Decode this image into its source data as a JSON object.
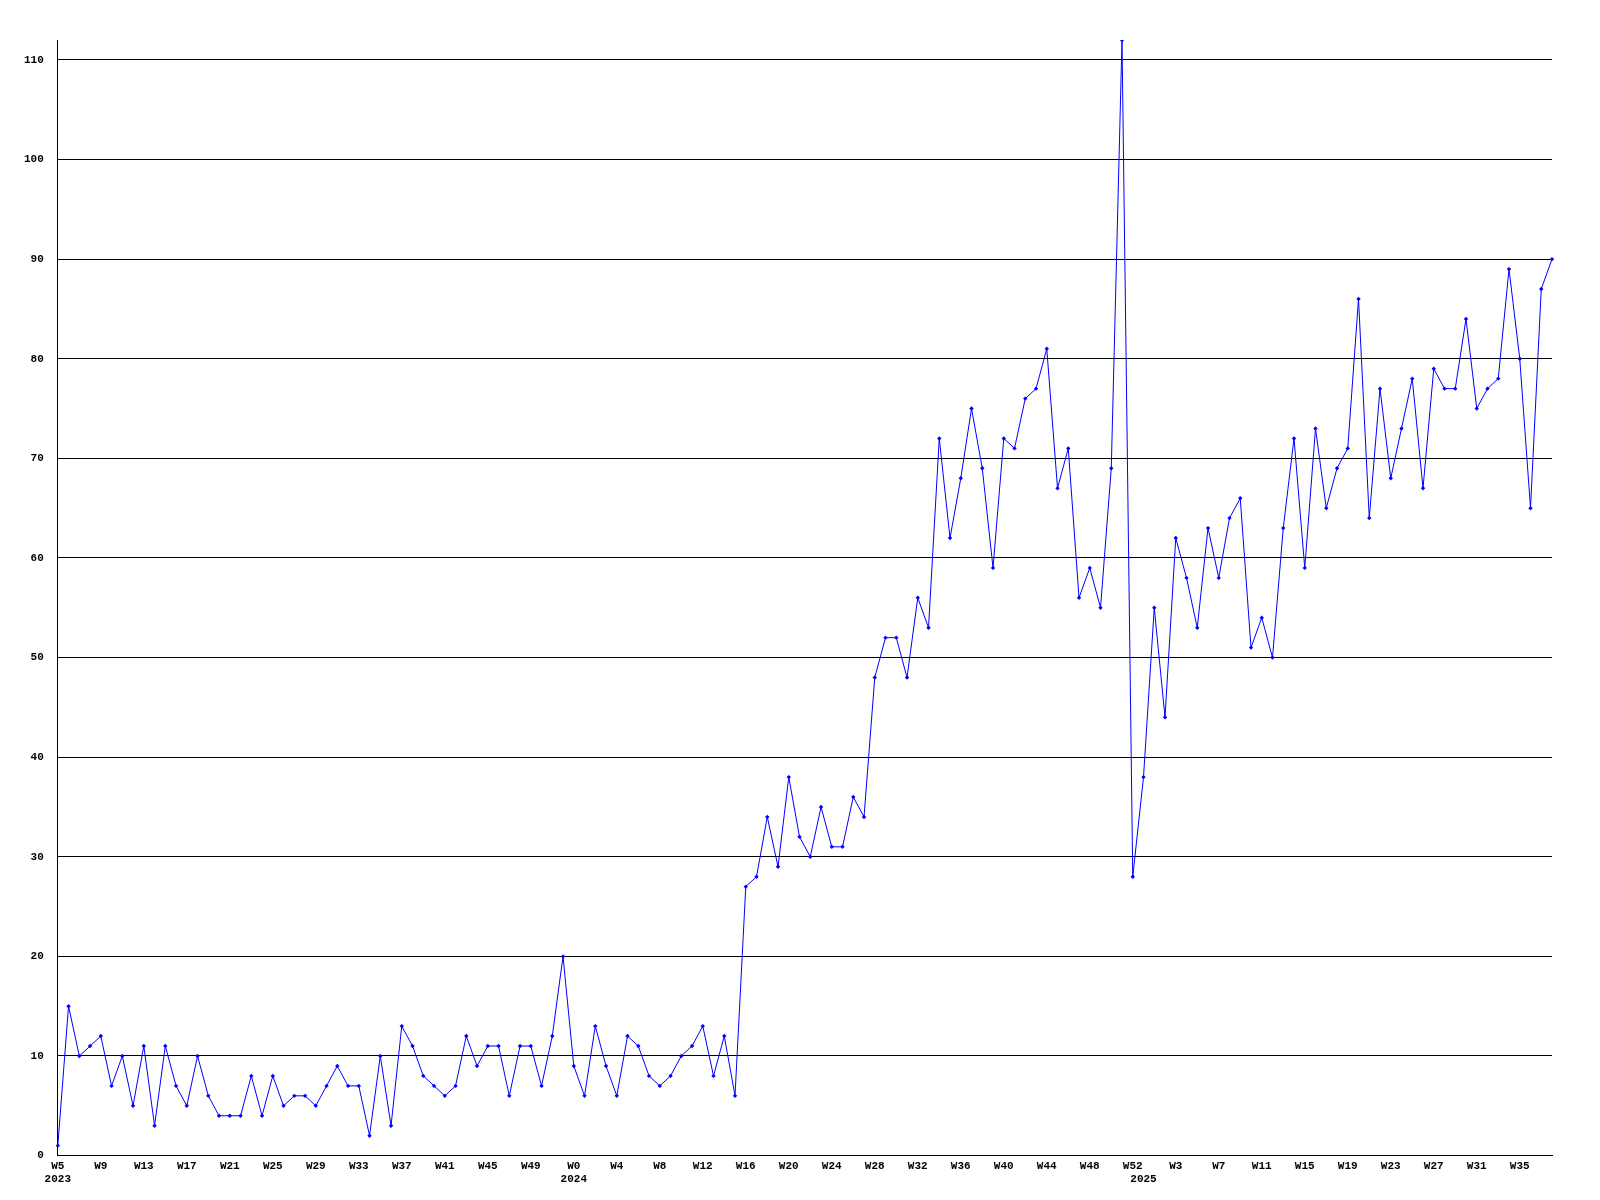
{
  "chart_data": {
    "type": "line",
    "categories": [
      "W5\n2023",
      null,
      null,
      null,
      "W9",
      null,
      null,
      null,
      "W13",
      null,
      null,
      null,
      "W17",
      null,
      null,
      null,
      "W21",
      null,
      null,
      null,
      "W25",
      null,
      null,
      null,
      "W29",
      null,
      null,
      null,
      "W33",
      null,
      null,
      null,
      "W37",
      null,
      null,
      null,
      "W41",
      null,
      null,
      null,
      "W45",
      null,
      null,
      null,
      "W49",
      null,
      null,
      null,
      "W0\n2024",
      null,
      null,
      null,
      "W4",
      null,
      null,
      null,
      "W8",
      null,
      null,
      null,
      "W12",
      null,
      null,
      null,
      "W16",
      null,
      null,
      null,
      "W20",
      null,
      null,
      null,
      "W24",
      null,
      null,
      null,
      "W28",
      null,
      null,
      null,
      "W32",
      null,
      null,
      null,
      "W36",
      null,
      null,
      null,
      "W40",
      null,
      null,
      null,
      "W44",
      null,
      null,
      null,
      "W48",
      null,
      null,
      null,
      "W52",
      "\n2025",
      null,
      null,
      "W3",
      null,
      null,
      null,
      "W7",
      null,
      null,
      null,
      "W11",
      null,
      null,
      null,
      "W15",
      null,
      null,
      null,
      "W19",
      null,
      null,
      null,
      "W23",
      null,
      null,
      null,
      "W27",
      null,
      null,
      null,
      "W31",
      null,
      null,
      null,
      "W35",
      null,
      null,
      null
    ],
    "series": [
      {
        "color": "#0000ff",
        "values": [
          1,
          15,
          10,
          11,
          12,
          7,
          10,
          5,
          11,
          3,
          11,
          7,
          5,
          10,
          6,
          4,
          4,
          4,
          8,
          4,
          8,
          5,
          6,
          6,
          5,
          7,
          9,
          7,
          7,
          2,
          10,
          3,
          13,
          11,
          8,
          7,
          6,
          7,
          12,
          9,
          11,
          11,
          6,
          11,
          11,
          7,
          12,
          20,
          9,
          6,
          13,
          9,
          6,
          12,
          11,
          8,
          7,
          8,
          10,
          11,
          13,
          8,
          12,
          6,
          27,
          28,
          34,
          29,
          38,
          32,
          30,
          35,
          31,
          31,
          36,
          34,
          48,
          52,
          52,
          48,
          56,
          53,
          72,
          62,
          68,
          75,
          69,
          59,
          72,
          71,
          76,
          77,
          81,
          67,
          71,
          56,
          59,
          55,
          69,
          112,
          28,
          38,
          55,
          44,
          62,
          58,
          53,
          63,
          58,
          64,
          66,
          51,
          54,
          50,
          63,
          72,
          59,
          73,
          65,
          69,
          71,
          86,
          64,
          77,
          68,
          73,
          78,
          67,
          79,
          77,
          77,
          84,
          75,
          77,
          78,
          89,
          80,
          65,
          87,
          90
        ]
      }
    ],
    "ylim": [
      0,
      112
    ],
    "yticks": [
      0,
      10,
      20,
      30,
      40,
      50,
      60,
      70,
      80,
      90,
      100,
      110
    ],
    "grid": "y",
    "legend": false,
    "marker": "diamond",
    "line_style": "solid"
  }
}
